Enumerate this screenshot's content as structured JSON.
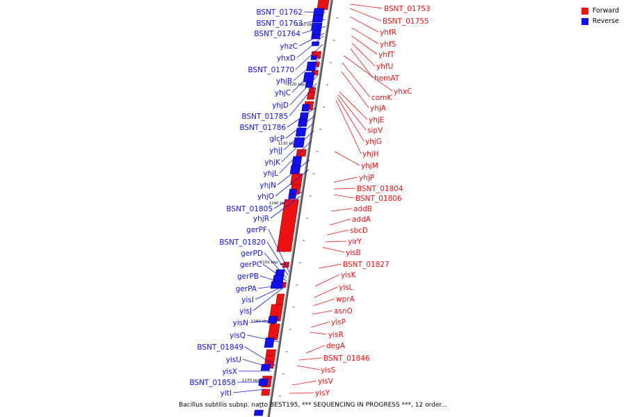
{
  "legend": {
    "forward_label": "Forward",
    "reverse_label": "Reverse",
    "forward_color": "#ee1111",
    "reverse_color": "#1111ee"
  },
  "caption": "Bacillus subtilis subsp. natto BEST195, *** SEQUENCING IN PROGRESS ***, 12 order...",
  "axis_ticks": [
    "1110 kbp",
    "1120 kbp",
    "1130 kbp",
    "1140 kbp",
    "1150 kbp",
    "1160 kbp",
    "1170 kbp"
  ],
  "forward_genes": [
    "BSNT_01753",
    "BSNT_01755",
    "yhfR",
    "yhfS",
    "yhfT",
    "yhfU",
    "hemAT",
    "yhxC",
    "comK",
    "yhjA",
    "yhjE",
    "sipV",
    "yhjG",
    "yhjH",
    "yhjM",
    "yhjP",
    "BSNT_01804",
    "BSNT_01806",
    "addB",
    "addA",
    "sbcD",
    "yirY",
    "yisB",
    "BSNT_01827",
    "yisK",
    "yisL",
    "wprA",
    "asnO",
    "yisP",
    "yisR",
    "degA",
    "BSNT_01846",
    "yisS",
    "yisV",
    "yisY"
  ],
  "reverse_genes": [
    "BSNT_01762",
    "BSNT_01763",
    "BSNT_01764",
    "yhzC",
    "yhxD",
    "BSNT_01770",
    "yhjB",
    "yhjC",
    "yhjD",
    "BSNT_01785",
    "BSNT_01786",
    "glcP",
    "yhjJ",
    "yhjK",
    "yhjL",
    "yhjN",
    "yhjO",
    "BSNT_01805",
    "yhjR",
    "gerPF",
    "BSNT_01820",
    "gerPD",
    "gerPC",
    "gerPB",
    "gerPA",
    "yisI",
    "yisJ",
    "yisN",
    "yisQ",
    "BSNT_01849",
    "yisU",
    "yisX",
    "BSNT_01858",
    "yitI"
  ]
}
